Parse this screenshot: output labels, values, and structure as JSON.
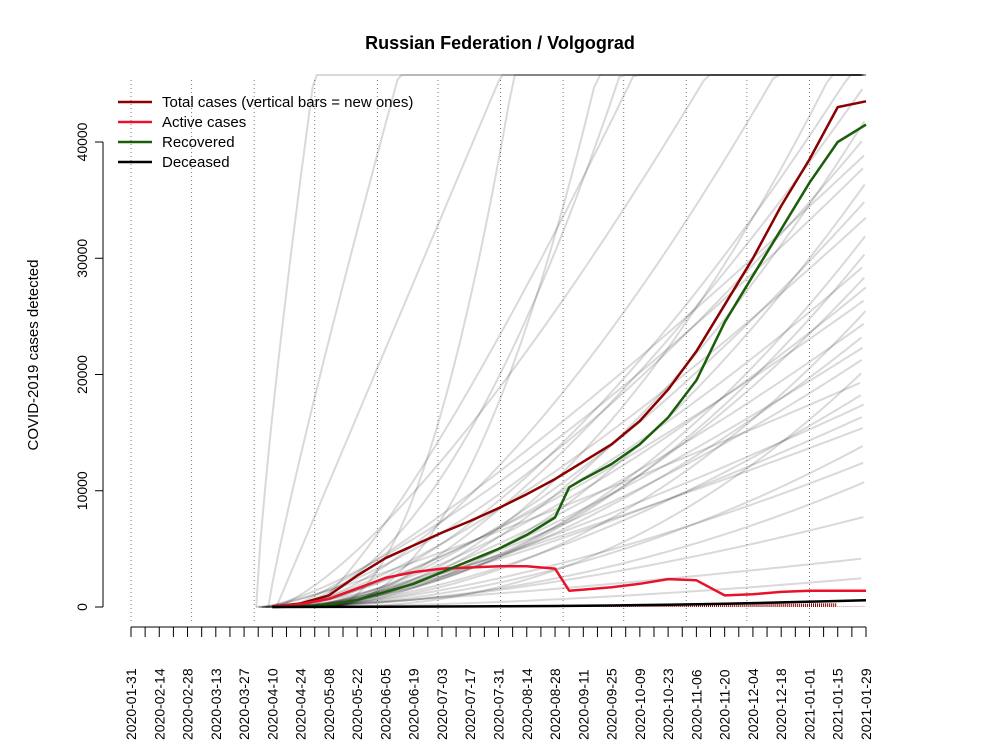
{
  "chart_data": {
    "type": "line",
    "title": "Russian Federation / Volgograd",
    "ylabel": "COVID-2019 cases detected",
    "xlabel": "",
    "x_start": "2020-01-31",
    "x_end": "2021-01-29",
    "xlim": [
      "2020-01-31",
      "2021-01-29"
    ],
    "ylim": [
      0,
      44000
    ],
    "x_ticks": [
      "2020-01-31",
      "2020-02-14",
      "2020-02-28",
      "2020-03-13",
      "2020-03-27",
      "2020-04-10",
      "2020-04-24",
      "2020-05-08",
      "2020-05-22",
      "2020-06-05",
      "2020-06-19",
      "2020-07-03",
      "2020-07-17",
      "2020-07-31",
      "2020-08-14",
      "2020-08-28",
      "2020-09-11",
      "2020-09-25",
      "2020-10-09",
      "2020-10-23",
      "2020-11-06",
      "2020-11-20",
      "2020-12-04",
      "2020-12-18",
      "2021-01-01",
      "2021-01-15",
      "2021-01-29"
    ],
    "y_ticks": [
      0,
      10000,
      20000,
      30000,
      40000
    ],
    "vertical_gridlines": [
      "2020-01-31",
      "2020-03-01",
      "2020-04-01",
      "2020-05-01",
      "2020-06-01",
      "2020-07-01",
      "2020-08-01",
      "2020-09-01",
      "2020-10-01",
      "2020-11-01",
      "2020-12-01",
      "2021-01-01"
    ],
    "legend_position": "top-left",
    "series": [
      {
        "name": "Total cases (vertical bars = new ones)",
        "color": "#8b0000",
        "x": [
          "2020-04-10",
          "2020-04-24",
          "2020-05-08",
          "2020-05-22",
          "2020-06-05",
          "2020-06-19",
          "2020-07-03",
          "2020-07-17",
          "2020-07-31",
          "2020-08-14",
          "2020-08-28",
          "2020-09-11",
          "2020-09-25",
          "2020-10-09",
          "2020-10-23",
          "2020-11-06",
          "2020-11-20",
          "2020-12-04",
          "2020-12-18",
          "2021-01-01",
          "2021-01-15",
          "2021-01-29"
        ],
        "y": [
          50,
          300,
          1000,
          2700,
          4200,
          5300,
          6400,
          7400,
          8500,
          9700,
          11000,
          12500,
          14000,
          16000,
          18700,
          22000,
          26000,
          30000,
          34500,
          38500,
          43000,
          43500
        ]
      },
      {
        "name": "Active cases",
        "color": "#e8132a",
        "x": [
          "2020-04-10",
          "2020-04-24",
          "2020-05-08",
          "2020-05-22",
          "2020-06-05",
          "2020-06-19",
          "2020-07-03",
          "2020-07-17",
          "2020-07-31",
          "2020-08-14",
          "2020-08-28",
          "2020-09-04",
          "2020-09-11",
          "2020-09-25",
          "2020-10-09",
          "2020-10-23",
          "2020-11-06",
          "2020-11-20",
          "2020-12-04",
          "2020-12-18",
          "2021-01-01",
          "2021-01-15",
          "2021-01-29"
        ],
        "y": [
          50,
          250,
          700,
          1600,
          2500,
          3000,
          3300,
          3400,
          3500,
          3500,
          3300,
          1400,
          1500,
          1700,
          2000,
          2400,
          2300,
          1000,
          1100,
          1300,
          1400,
          1400,
          1400
        ]
      },
      {
        "name": "Recovered",
        "color": "#1a5e0a",
        "x": [
          "2020-04-10",
          "2020-04-24",
          "2020-05-08",
          "2020-05-22",
          "2020-06-05",
          "2020-06-19",
          "2020-07-03",
          "2020-07-17",
          "2020-07-31",
          "2020-08-14",
          "2020-08-28",
          "2020-09-04",
          "2020-09-11",
          "2020-09-25",
          "2020-10-09",
          "2020-10-23",
          "2020-11-06",
          "2020-11-20",
          "2020-12-04",
          "2020-12-18",
          "2021-01-01",
          "2021-01-15",
          "2021-01-29"
        ],
        "y": [
          0,
          40,
          200,
          600,
          1300,
          2000,
          3000,
          4000,
          5000,
          6200,
          7700,
          10300,
          11000,
          12300,
          14000,
          16300,
          19500,
          24500,
          28500,
          32500,
          36500,
          40000,
          41500
        ]
      },
      {
        "name": "Deceased",
        "color": "#000000",
        "x": [
          "2020-04-10",
          "2020-05-08",
          "2020-06-05",
          "2020-07-03",
          "2020-07-31",
          "2020-08-28",
          "2020-09-25",
          "2020-10-23",
          "2020-11-20",
          "2020-12-18",
          "2021-01-15",
          "2021-01-29"
        ],
        "y": [
          0,
          5,
          20,
          40,
          60,
          90,
          130,
          200,
          280,
          400,
          520,
          580
        ]
      }
    ]
  }
}
